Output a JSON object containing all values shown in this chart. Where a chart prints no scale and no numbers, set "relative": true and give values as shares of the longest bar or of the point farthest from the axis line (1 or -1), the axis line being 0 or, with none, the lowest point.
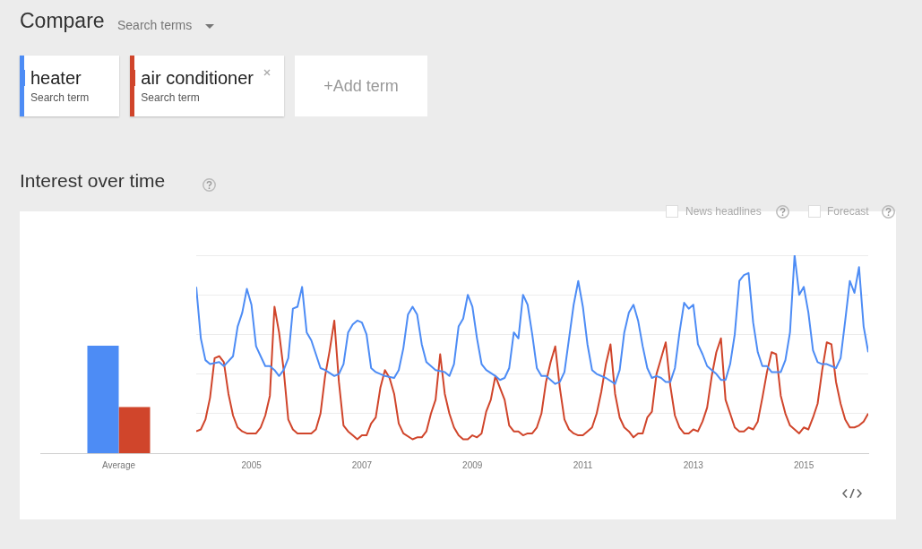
{
  "chart_data": [
    {
      "type": "bar",
      "relative": true,
      "categories": [
        "Average"
      ],
      "series": [
        {
          "color": "#4d8cf5",
          "values": [
            1
          ]
        },
        {
          "color": "#d0452b",
          "values": [
            0.43
          ]
        }
      ]
    },
    {
      "type": "line",
      "relative": true,
      "title": "Interest over time",
      "legend": "top left",
      "grid": "y",
      "xlim": [
        "2004-01",
        "2016-03"
      ],
      "xticks": [
        "2005",
        "2007",
        "2009",
        "2011",
        "2013",
        "2015"
      ],
      "annotations": [
        "Compare",
        "Search terms",
        "Search term",
        "Search term",
        "+Add term",
        "News headlines",
        "Forecast"
      ],
      "series": [
        {
          "name": "heater",
          "color": "#4d8cf5",
          "x": [
            "2004-01",
            "2004-02",
            "2004-03",
            "2004-04",
            "2004-06",
            "2004-07",
            "2004-09",
            "2004-10",
            "2004-11",
            "2004-12",
            "2005-01",
            "2005-02",
            "2005-03",
            "2005-04",
            "2005-05",
            "2005-06",
            "2005-07",
            "2005-08",
            "2005-09",
            "2005-10",
            "2005-11",
            "2005-12",
            "2006-01",
            "2006-02",
            "2006-04",
            "2006-05",
            "2006-07",
            "2006-08",
            "2006-09",
            "2006-10",
            "2006-11",
            "2006-12",
            "2007-01",
            "2007-02",
            "2007-03",
            "2007-04",
            "2007-06",
            "2007-08",
            "2007-09",
            "2007-10",
            "2007-11",
            "2007-12",
            "2008-01",
            "2008-02",
            "2008-03",
            "2008-05",
            "2008-07",
            "2008-08",
            "2008-09",
            "2008-10",
            "2008-11",
            "2008-12",
            "2009-01",
            "2009-02",
            "2009-03",
            "2009-04",
            "2009-06",
            "2009-07",
            "2009-08",
            "2009-09",
            "2009-10",
            "2009-11",
            "2009-12",
            "2010-01",
            "2010-02",
            "2010-03",
            "2010-04",
            "2010-05",
            "2010-07",
            "2010-08",
            "2010-09",
            "2010-10",
            "2010-11",
            "2010-12",
            "2011-01",
            "2011-02",
            "2011-03",
            "2011-04",
            "2011-06",
            "2011-08",
            "2011-09",
            "2011-10",
            "2011-11",
            "2011-12",
            "2012-01",
            "2012-02",
            "2012-03",
            "2012-04",
            "2012-05",
            "2012-06",
            "2012-07",
            "2012-08",
            "2012-09",
            "2012-10",
            "2012-11",
            "2012-12",
            "2013-01",
            "2013-02",
            "2013-03",
            "2013-04",
            "2013-05",
            "2013-06",
            "2013-07",
            "2013-08",
            "2013-09",
            "2013-10",
            "2013-11",
            "2013-12",
            "2014-01",
            "2014-02",
            "2014-03",
            "2014-04",
            "2014-05",
            "2014-06",
            "2014-08",
            "2014-09",
            "2014-10",
            "2014-11",
            "2014-12",
            "2015-01",
            "2015-02",
            "2015-03",
            "2015-04",
            "2015-05",
            "2015-06",
            "2015-07",
            "2015-08",
            "2015-09",
            "2015-10",
            "2015-11",
            "2015-12",
            "2016-01",
            "2016-02",
            "2016-03"
          ],
          "values": [
            0.84,
            0.58,
            0.47,
            0.45,
            0.46,
            0.44,
            0.49,
            0.64,
            0.71,
            0.83,
            0.75,
            0.54,
            0.49,
            0.44,
            0.44,
            0.42,
            0.39,
            0.42,
            0.48,
            0.73,
            0.74,
            0.84,
            0.61,
            0.57,
            0.43,
            0.42,
            0.39,
            0.4,
            0.45,
            0.61,
            0.65,
            0.67,
            0.66,
            0.6,
            0.43,
            0.41,
            0.39,
            0.38,
            0.42,
            0.53,
            0.7,
            0.74,
            0.7,
            0.55,
            0.46,
            0.42,
            0.41,
            0.39,
            0.45,
            0.64,
            0.68,
            0.8,
            0.74,
            0.58,
            0.45,
            0.42,
            0.39,
            0.37,
            0.38,
            0.43,
            0.61,
            0.58,
            0.8,
            0.75,
            0.6,
            0.43,
            0.39,
            0.39,
            0.35,
            0.36,
            0.41,
            0.58,
            0.75,
            0.87,
            0.74,
            0.55,
            0.42,
            0.4,
            0.38,
            0.35,
            0.42,
            0.61,
            0.71,
            0.75,
            0.67,
            0.54,
            0.43,
            0.38,
            0.39,
            0.38,
            0.36,
            0.36,
            0.43,
            0.61,
            0.76,
            0.73,
            0.75,
            0.55,
            0.5,
            0.44,
            0.42,
            0.4,
            0.37,
            0.37,
            0.45,
            0.6,
            0.87,
            0.9,
            0.91,
            0.66,
            0.51,
            0.44,
            0.44,
            0.41,
            0.41,
            0.47,
            0.61,
            1.0,
            0.8,
            0.84,
            0.71,
            0.52,
            0.46,
            0.45,
            0.45,
            0.44,
            0.43,
            0.48,
            0.67,
            0.87,
            0.81,
            0.94,
            0.64,
            0.51
          ]
        },
        {
          "name": "air conditioner",
          "color": "#d0452b",
          "x": [
            "2004-01",
            "2004-02",
            "2004-03",
            "2004-04",
            "2004-05",
            "2004-06",
            "2004-07",
            "2004-08",
            "2004-09",
            "2004-10",
            "2004-11",
            "2004-12",
            "2005-02",
            "2005-03",
            "2005-04",
            "2005-05",
            "2005-06",
            "2005-07",
            "2005-08",
            "2005-09",
            "2005-10",
            "2005-11",
            "2006-02",
            "2006-03",
            "2006-04",
            "2006-05",
            "2006-06",
            "2006-07",
            "2006-08",
            "2006-09",
            "2006-10",
            "2006-11",
            "2006-12",
            "2007-01",
            "2007-02",
            "2007-03",
            "2007-04",
            "2007-05",
            "2007-06",
            "2007-07",
            "2007-08",
            "2007-09",
            "2007-10",
            "2007-12",
            "2008-01",
            "2008-02",
            "2008-03",
            "2008-04",
            "2008-05",
            "2008-06",
            "2008-07",
            "2008-08",
            "2008-09",
            "2008-10",
            "2008-11",
            "2008-12",
            "2009-01",
            "2009-02",
            "2009-03",
            "2009-04",
            "2009-05",
            "2009-06",
            "2009-07",
            "2009-08",
            "2009-09",
            "2009-10",
            "2009-11",
            "2009-12",
            "2010-01",
            "2010-02",
            "2010-03",
            "2010-04",
            "2010-05",
            "2010-06",
            "2010-07",
            "2010-08",
            "2010-09",
            "2010-10",
            "2010-11",
            "2010-12",
            "2011-01",
            "2011-02",
            "2011-03",
            "2011-04",
            "2011-05",
            "2011-06",
            "2011-07",
            "2011-08",
            "2011-09",
            "2011-10",
            "2011-11",
            "2011-12",
            "2012-01",
            "2012-02",
            "2012-03",
            "2012-04",
            "2012-05",
            "2012-06",
            "2012-07",
            "2012-08",
            "2012-09",
            "2012-10",
            "2012-11",
            "2012-12",
            "2013-01",
            "2013-02",
            "2013-03",
            "2013-04",
            "2013-05",
            "2013-06",
            "2013-07",
            "2013-08",
            "2013-09",
            "2013-10",
            "2013-11",
            "2013-12",
            "2014-01",
            "2014-02",
            "2014-03",
            "2014-04",
            "2014-05",
            "2014-06",
            "2014-07",
            "2014-08",
            "2014-09",
            "2014-10",
            "2014-11",
            "2014-12",
            "2015-01",
            "2015-02",
            "2015-03",
            "2015-04",
            "2015-05",
            "2015-06",
            "2015-07",
            "2015-08",
            "2015-09",
            "2015-10",
            "2015-11",
            "2015-12",
            "2016-01",
            "2016-02",
            "2016-03"
          ],
          "values": [
            0.11,
            0.12,
            0.17,
            0.28,
            0.48,
            0.49,
            0.46,
            0.3,
            0.19,
            0.13,
            0.11,
            0.1,
            0.1,
            0.13,
            0.19,
            0.29,
            0.74,
            0.61,
            0.42,
            0.17,
            0.12,
            0.1,
            0.1,
            0.12,
            0.2,
            0.39,
            0.52,
            0.67,
            0.36,
            0.14,
            0.11,
            0.09,
            0.07,
            0.09,
            0.09,
            0.15,
            0.18,
            0.33,
            0.42,
            0.38,
            0.3,
            0.15,
            0.1,
            0.07,
            0.08,
            0.08,
            0.11,
            0.2,
            0.27,
            0.5,
            0.3,
            0.2,
            0.13,
            0.09,
            0.07,
            0.07,
            0.09,
            0.08,
            0.1,
            0.21,
            0.27,
            0.39,
            0.33,
            0.27,
            0.14,
            0.11,
            0.11,
            0.09,
            0.1,
            0.1,
            0.13,
            0.2,
            0.36,
            0.46,
            0.54,
            0.33,
            0.17,
            0.12,
            0.1,
            0.09,
            0.09,
            0.11,
            0.13,
            0.2,
            0.31,
            0.45,
            0.55,
            0.3,
            0.18,
            0.13,
            0.11,
            0.08,
            0.1,
            0.1,
            0.18,
            0.21,
            0.4,
            0.48,
            0.56,
            0.34,
            0.19,
            0.13,
            0.1,
            0.1,
            0.12,
            0.11,
            0.16,
            0.23,
            0.39,
            0.51,
            0.58,
            0.27,
            0.2,
            0.13,
            0.11,
            0.11,
            0.13,
            0.12,
            0.16,
            0.28,
            0.41,
            0.51,
            0.5,
            0.29,
            0.2,
            0.14,
            0.12,
            0.1,
            0.13,
            0.12,
            0.18,
            0.25,
            0.42,
            0.56,
            0.55,
            0.36,
            0.25,
            0.17,
            0.13,
            0.13,
            0.14,
            0.16,
            0.2
          ]
        }
      ]
    }
  ]
}
